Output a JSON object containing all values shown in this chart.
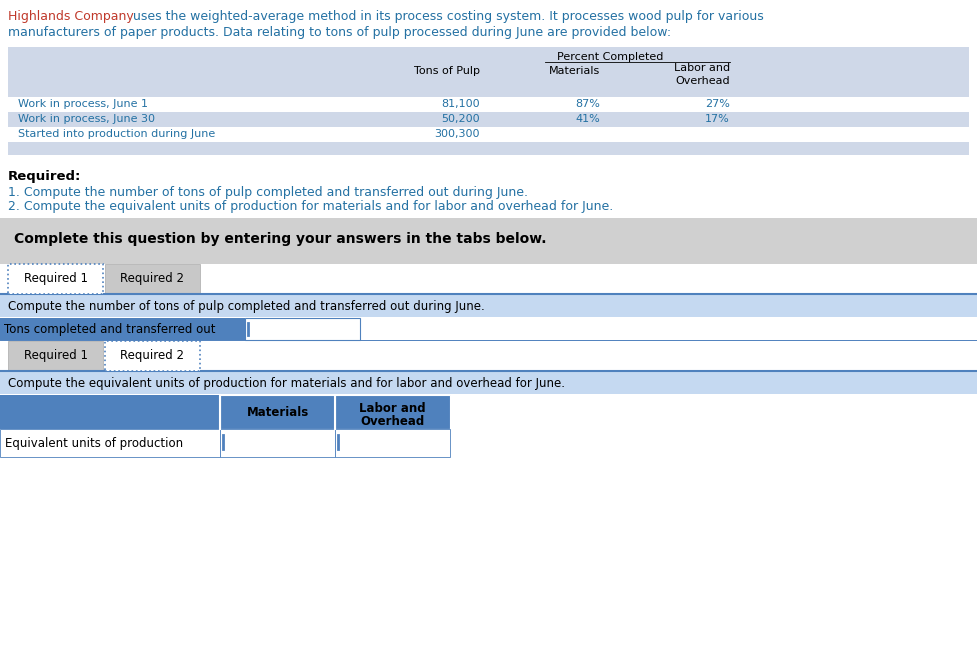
{
  "intro1": "Highlands Company",
  "intro1_color": "#c0392b",
  "intro2": " uses the weighted-average method in its process costing system. It processes wood pulp for various",
  "intro2_color": "#2471a3",
  "intro3": "manufacturers of paper products. Data relating to tons of pulp processed during June are provided below:",
  "intro3_color": "#2471a3",
  "table_bg": "#cfd8e8",
  "table_row_white": "#ffffff",
  "table_row_blue": "#cfd8e8",
  "table_rows": [
    {
      "label": "Work in process, June 1",
      "tons": "81,100",
      "mat": "87%",
      "lo": "27%",
      "bg": "#ffffff"
    },
    {
      "label": "Work in process, June 30",
      "tons": "50,200",
      "mat": "41%",
      "lo": "17%",
      "bg": "#cfd8e8"
    },
    {
      "label": "Started into production during June",
      "tons": "300,300",
      "mat": "",
      "lo": "",
      "bg": "#ffffff"
    }
  ],
  "text_blue": "#2471a3",
  "text_black": "#000000",
  "complete_bg": "#d0d0d0",
  "complete_text": "Complete this question by entering your answers in the tabs below.",
  "tab_active_bg": "#ffffff",
  "tab_inactive_bg": "#c8c8c8",
  "tab_dot_color": "#4f81bd",
  "section_bg": "#c5d9f1",
  "field_label_bg": "#4f81bd",
  "field_input_bg": "#ffffff",
  "table2_header_bg": "#4f81bd",
  "table2_row_bg": "#ffffff",
  "section_line_color": "#4f81bd",
  "tab1": "Required 1",
  "tab2": "Required 2"
}
